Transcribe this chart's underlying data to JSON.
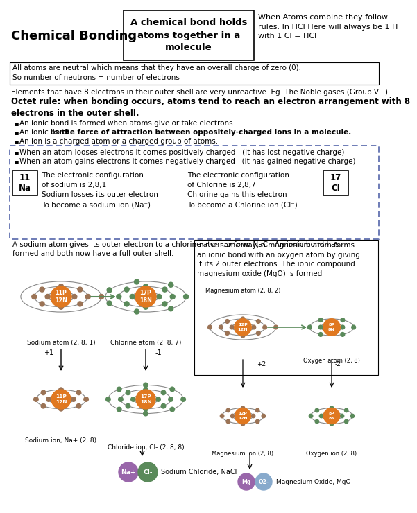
{
  "title": "Chemical Bonding",
  "box_title": "A chemical bond holds\natoms together in a\nmolecule",
  "header_note": "When Atoms combine they follow\nrules. In HCl Here will always be 1 H\nwith 1 Cl = HCl",
  "neutral_box": "All atoms are neutral which means that they have an overall charge of zero (0).\nSo number of neutrons = number of electrons",
  "octet_intro": "Elements that have 8 electrons in their outer shell are very unreactive. Eg. The Noble gases (Group VIII)",
  "octet_rule_bold": "Octet rule: when bonding occurs, atoms tend to reach an electron arrangement with 8\nelectrons in the outer shell.",
  "bullet1": "An ionic bond is formed when atoms give or take electrons.",
  "bullet2_pre": "An ionic bond ",
  "bullet2_bold": "is the force of attraction between oppositely-charged ions in a molecule.",
  "bullet3": "An ion is a charged atom or a charged group of atoms.",
  "dash1": "When an atom looses electrons it comes positively charged   (it has lost negative charge)",
  "dash2": "When an atom gains electrons it comes negatively charged   (it has gained negative charge)",
  "na_box_text": "11\nNa",
  "na_config": "The electronic configuration\nof sodium is 2,8,1\nSodium losses its outer electron\nTo become a sodium ion (Na⁺)",
  "cl_box_text": "17\nCl",
  "cl_config": "The electronic configuration\nof Chlorine is 2,8,7\nChlorine gains this electron\nTo become a Chlorine ion (Cl⁻)",
  "nacl_desc": "A sodium atom gives its outer electron to a chlorine atom to form NaCl: An ionic bond has\nformed and both now have a full outer shell.",
  "mgo_desc": "In the same way, a magnesium atom forms\nan ionic bond with an oxygen atom by giving\nit its 2 outer electrons. The ionic compound\nmagnesium oxide (MgO) is formed",
  "sodium_atom_label": "Sodium atom (2, 8, 1)",
  "chlorine_atom_label": "Chlorine atom (2, 8, 7)",
  "sodium_ion_label": "Sodium ion, Na+ (2, 8)",
  "chloride_ion_label": "Chloride ion, Cl- (2, 8, 8)",
  "mg_atom_label": "Magnesium atom (2, 8, 2)",
  "o_atom_label": "Oxygen atom (2, 8)",
  "mg_ion_label": "Magnesium ion (2, 8)",
  "o_ion_label": "Oxygen ion (2, 8)",
  "nacl_mol_label": "Sodium Chloride, NaCl",
  "mgo_mol_label": "Magnesium Oxide, MgO",
  "bg_color": "#ffffff",
  "orange_color": "#e07820",
  "green_color": "#5a8a5a",
  "brown_color": "#9B7355",
  "purple_color": "#9966aa",
  "lightblue_color": "#88aacc",
  "dashed_color": "#5566aa"
}
